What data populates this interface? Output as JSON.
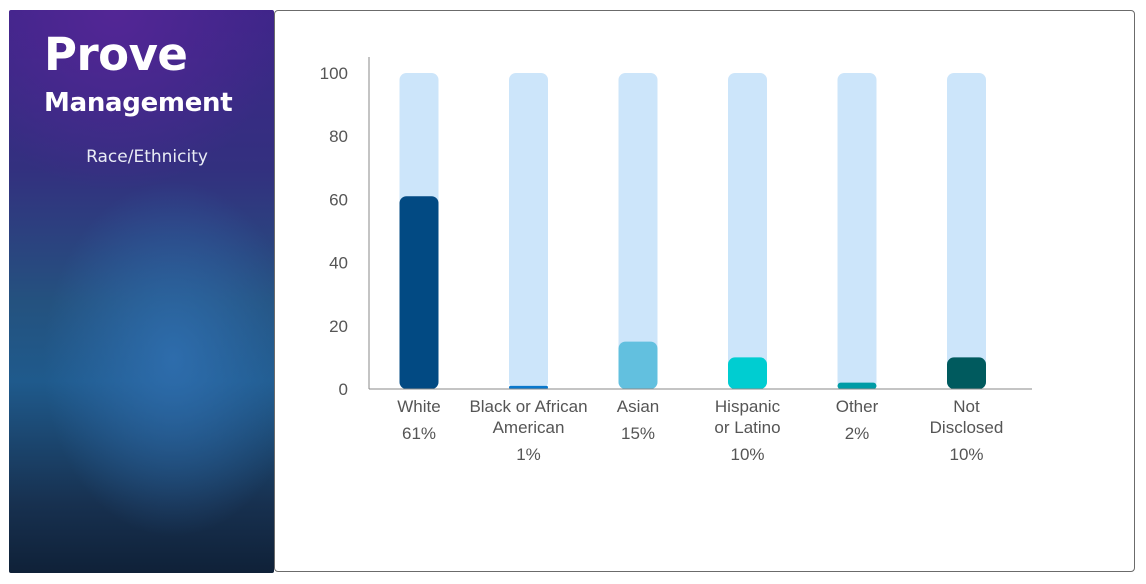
{
  "sidebar": {
    "brand_main": "Prove",
    "brand_sub": "Management",
    "caption": "Race/Ethnicity"
  },
  "chart_data": {
    "type": "bar",
    "categories": [
      [
        "White"
      ],
      [
        "Black or African",
        "American"
      ],
      [
        "Asian"
      ],
      [
        "Hispanic",
        "or Latino"
      ],
      [
        "Other"
      ],
      [
        "Not",
        "Disclosed"
      ]
    ],
    "values": [
      61,
      1,
      15,
      10,
      2,
      10
    ],
    "value_labels": [
      "61%",
      "1%",
      "15%",
      "10%",
      "2%",
      "10%"
    ],
    "bar_colors": [
      "#024a83",
      "#0a78cc",
      "#62c0df",
      "#00cdd1",
      "#009ca6",
      "#005a5e"
    ],
    "track_color": "#cce5fa",
    "track_max": 100,
    "ylim": [
      0,
      100
    ],
    "yticks": [
      0,
      20,
      40,
      60,
      80,
      100
    ],
    "grid": false,
    "legend": "none",
    "title": "",
    "xlabel": "",
    "ylabel": ""
  }
}
